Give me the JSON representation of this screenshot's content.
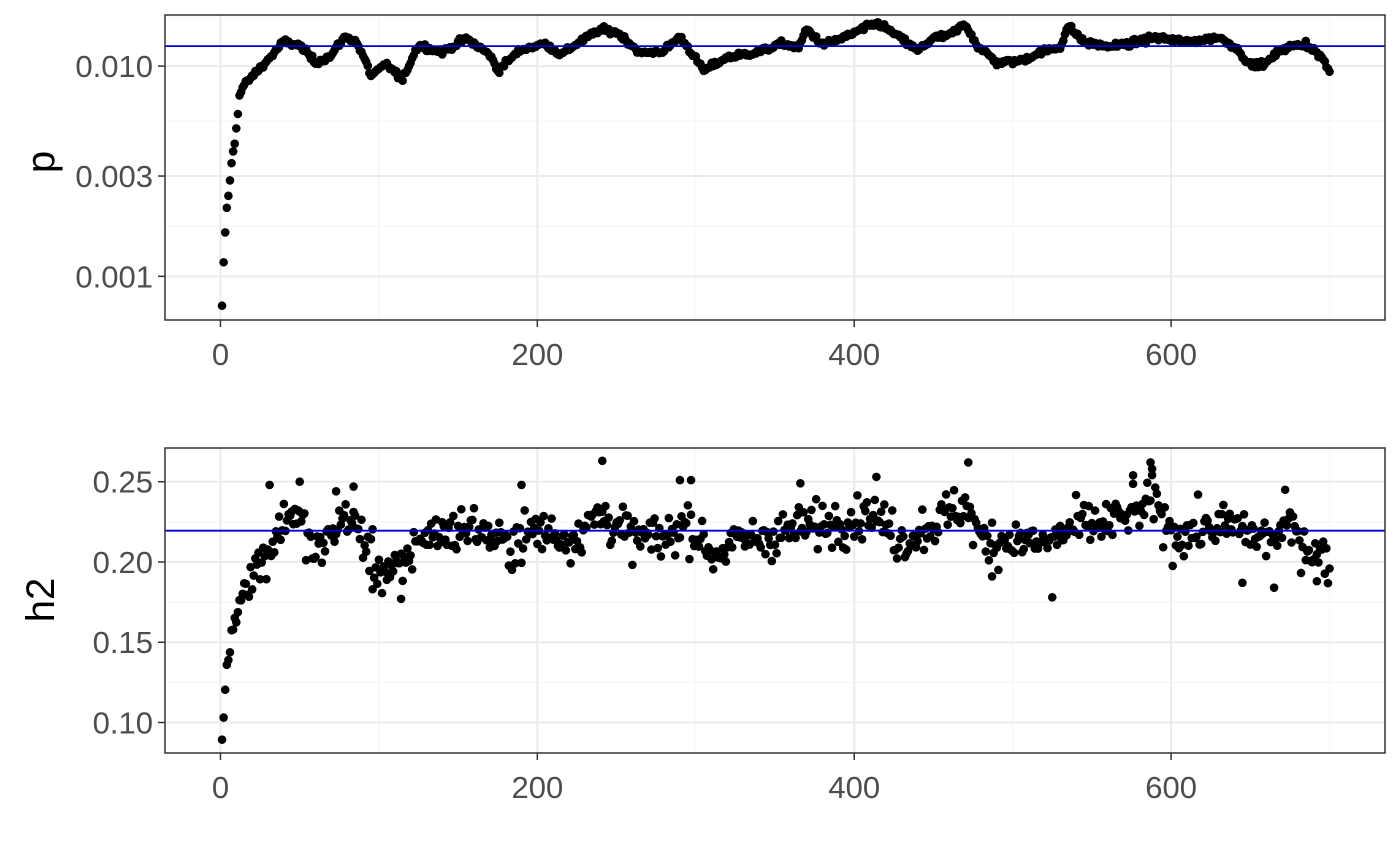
{
  "colors": {
    "background": "#ffffff",
    "panel_border": "#333333",
    "grid_major": "#ebebeb",
    "grid_minor": "#f5f5f5",
    "points": "#000000",
    "reference_line": "#0000cc",
    "tick_text": "#4d4d4d"
  },
  "chart_data": [
    {
      "type": "scatter",
      "ylabel": "p",
      "xlabel": "",
      "title": "",
      "y_scale": "log",
      "xlim": [
        -35,
        735
      ],
      "ylim": [
        0.00062,
        0.0175
      ],
      "x_ticks": [
        0,
        200,
        400,
        600
      ],
      "x_tick_labels": [
        "0",
        "200",
        "400",
        "600"
      ],
      "y_ticks": [
        0.001,
        0.003,
        0.01
      ],
      "y_tick_labels": [
        "0.001",
        "0.003",
        "0.010"
      ],
      "grid": true,
      "reference_line": 0.01245,
      "anchors": [
        [
          1,
          0.00071
        ],
        [
          2,
          0.00115
        ],
        [
          4,
          0.0021
        ],
        [
          5,
          0.0024
        ],
        [
          6,
          0.0029
        ],
        [
          7,
          0.0034
        ],
        [
          8,
          0.0039
        ],
        [
          9,
          0.0043
        ],
        [
          10,
          0.0051
        ],
        [
          11,
          0.0061
        ],
        [
          12,
          0.0072
        ],
        [
          14,
          0.0079
        ],
        [
          16,
          0.0083
        ],
        [
          20,
          0.0089
        ],
        [
          25,
          0.0098
        ],
        [
          30,
          0.0107
        ],
        [
          35,
          0.0118
        ],
        [
          40,
          0.0131
        ],
        [
          50,
          0.0125
        ],
        [
          60,
          0.0104
        ],
        [
          70,
          0.0112
        ],
        [
          78,
          0.0137
        ],
        [
          85,
          0.0133
        ],
        [
          95,
          0.009
        ],
        [
          105,
          0.0102
        ],
        [
          115,
          0.0085
        ],
        [
          125,
          0.0126
        ],
        [
          140,
          0.0116
        ],
        [
          155,
          0.0135
        ],
        [
          170,
          0.0113
        ],
        [
          175,
          0.0095
        ],
        [
          190,
          0.012
        ],
        [
          205,
          0.0128
        ],
        [
          215,
          0.0113
        ],
        [
          225,
          0.0128
        ],
        [
          240,
          0.0149
        ],
        [
          250,
          0.0145
        ],
        [
          265,
          0.0115
        ],
        [
          280,
          0.0118
        ],
        [
          290,
          0.0138
        ],
        [
          300,
          0.0108
        ],
        [
          305,
          0.0095
        ],
        [
          320,
          0.011
        ],
        [
          340,
          0.0117
        ],
        [
          355,
          0.0128
        ],
        [
          365,
          0.0122
        ],
        [
          370,
          0.015
        ],
        [
          380,
          0.0126
        ],
        [
          395,
          0.0138
        ],
        [
          405,
          0.015
        ],
        [
          415,
          0.016
        ],
        [
          425,
          0.0143
        ],
        [
          440,
          0.0118
        ],
        [
          450,
          0.0136
        ],
        [
          460,
          0.014
        ],
        [
          470,
          0.0158
        ],
        [
          478,
          0.0124
        ],
        [
          490,
          0.0104
        ],
        [
          505,
          0.0106
        ],
        [
          520,
          0.0118
        ],
        [
          530,
          0.0123
        ],
        [
          535,
          0.0155
        ],
        [
          545,
          0.013
        ],
        [
          560,
          0.0124
        ],
        [
          575,
          0.0128
        ],
        [
          590,
          0.0137
        ],
        [
          610,
          0.013
        ],
        [
          630,
          0.0137
        ],
        [
          640,
          0.0124
        ],
        [
          650,
          0.0101
        ],
        [
          660,
          0.0103
        ],
        [
          670,
          0.0121
        ],
        [
          685,
          0.0128
        ],
        [
          695,
          0.011
        ],
        [
          700,
          0.0093
        ]
      ]
    },
    {
      "type": "scatter",
      "ylabel": "h2",
      "xlabel": "",
      "title": "",
      "y_scale": "linear",
      "xlim": [
        -35,
        735
      ],
      "ylim": [
        0.081,
        0.271
      ],
      "x_ticks": [
        0,
        200,
        400,
        600
      ],
      "x_tick_labels": [
        "0",
        "200",
        "400",
        "600"
      ],
      "y_ticks": [
        0.1,
        0.15,
        0.2,
        0.25
      ],
      "y_tick_labels": [
        "0.10",
        "0.15",
        "0.20",
        "0.25"
      ],
      "grid": true,
      "reference_line": 0.2195,
      "noise": 0.013,
      "anchors": [
        [
          1,
          0.089
        ],
        [
          2,
          0.104
        ],
        [
          4,
          0.136
        ],
        [
          5,
          0.14
        ],
        [
          6,
          0.145
        ],
        [
          7,
          0.155
        ],
        [
          8,
          0.16
        ],
        [
          10,
          0.165
        ],
        [
          12,
          0.175
        ],
        [
          15,
          0.185
        ],
        [
          20,
          0.195
        ],
        [
          28,
          0.202
        ],
        [
          35,
          0.217
        ],
        [
          45,
          0.233
        ],
        [
          52,
          0.222
        ],
        [
          60,
          0.203
        ],
        [
          70,
          0.218
        ],
        [
          80,
          0.23
        ],
        [
          90,
          0.214
        ],
        [
          100,
          0.195
        ],
        [
          115,
          0.194
        ],
        [
          125,
          0.216
        ],
        [
          140,
          0.218
        ],
        [
          160,
          0.222
        ],
        [
          180,
          0.21
        ],
        [
          200,
          0.22
        ],
        [
          220,
          0.214
        ],
        [
          240,
          0.23
        ],
        [
          260,
          0.215
        ],
        [
          280,
          0.214
        ],
        [
          295,
          0.225
        ],
        [
          310,
          0.205
        ],
        [
          330,
          0.213
        ],
        [
          350,
          0.217
        ],
        [
          370,
          0.222
        ],
        [
          390,
          0.225
        ],
        [
          410,
          0.231
        ],
        [
          430,
          0.213
        ],
        [
          450,
          0.224
        ],
        [
          470,
          0.236
        ],
        [
          480,
          0.213
        ],
        [
          500,
          0.214
        ],
        [
          520,
          0.211
        ],
        [
          540,
          0.222
        ],
        [
          560,
          0.224
        ],
        [
          580,
          0.232
        ],
        [
          590,
          0.238
        ],
        [
          600,
          0.216
        ],
        [
          620,
          0.221
        ],
        [
          640,
          0.222
        ],
        [
          660,
          0.214
        ],
        [
          675,
          0.221
        ],
        [
          690,
          0.206
        ],
        [
          700,
          0.2
        ]
      ],
      "outliers": [
        [
          31,
          0.248
        ],
        [
          50,
          0.25
        ],
        [
          73,
          0.244
        ],
        [
          84,
          0.247
        ],
        [
          96,
          0.183
        ],
        [
          114,
          0.177
        ],
        [
          190,
          0.248
        ],
        [
          241,
          0.263
        ],
        [
          290,
          0.251
        ],
        [
          297,
          0.251
        ],
        [
          366,
          0.249
        ],
        [
          414,
          0.253
        ],
        [
          472,
          0.262
        ],
        [
          487,
          0.191
        ],
        [
          525,
          0.178
        ],
        [
          576,
          0.254
        ],
        [
          587,
          0.262
        ],
        [
          588,
          0.258
        ],
        [
          645,
          0.187
        ],
        [
          665,
          0.184
        ],
        [
          672,
          0.245
        ],
        [
          692,
          0.188
        ]
      ]
    }
  ]
}
